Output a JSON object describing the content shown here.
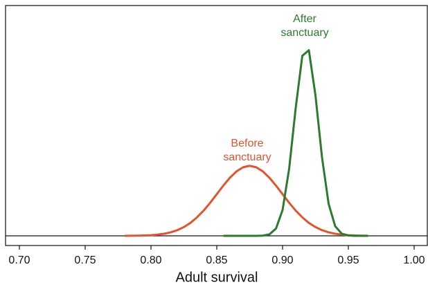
{
  "chart_data": {
    "type": "line",
    "xlabel": "Adult survival",
    "x": [
      0.78,
      0.785,
      0.79,
      0.795,
      0.8,
      0.805,
      0.81,
      0.815,
      0.82,
      0.825,
      0.83,
      0.835,
      0.84,
      0.845,
      0.85,
      0.855,
      0.86,
      0.865,
      0.87,
      0.875,
      0.88,
      0.885,
      0.89,
      0.895,
      0.9,
      0.905,
      0.91,
      0.915,
      0.92,
      0.925,
      0.93,
      0.935,
      0.94,
      0.945,
      0.95,
      0.955,
      0.96,
      0.965
    ],
    "series": [
      {
        "name": "Before sanctuary",
        "color": "#e5522b",
        "values": [
          0.01,
          0.02,
          0.04,
          0.08,
          0.15,
          0.28,
          0.48,
          0.81,
          1.31,
          2.04,
          3.01,
          4.31,
          5.87,
          7.7,
          9.69,
          11.69,
          13.52,
          15.0,
          15.96,
          16.3,
          15.96,
          15.0,
          13.52,
          11.69,
          9.69,
          7.7,
          5.87,
          4.31,
          3.01,
          2.04,
          1.31,
          0.81,
          0.48,
          0.28,
          0.15,
          0.08,
          0.04,
          0.02
        ]
      },
      {
        "name": "After sanctuary",
        "color": "#2b7a2e",
        "values": [
          null,
          null,
          null,
          null,
          null,
          null,
          null,
          null,
          null,
          null,
          null,
          null,
          null,
          null,
          null,
          0,
          0,
          0,
          0,
          0,
          0.01,
          0.05,
          0.35,
          1.69,
          6.0,
          15.6,
          29.8,
          41.9,
          43.2,
          32.7,
          18.2,
          7.46,
          2.23,
          0.49,
          0.08,
          0.01,
          0,
          0
        ]
      }
    ],
    "annotations": [
      [
        "Before",
        "sanctuary"
      ],
      [
        "After",
        "sanctuary"
      ]
    ],
    "xlim": [
      0.69,
      1.01
    ],
    "xticks": [
      {
        "value": 0.7,
        "label": "0.70"
      },
      0.75,
      {
        "value": 0.8,
        "label": "0.80"
      },
      0.85,
      {
        "value": 0.9,
        "label": "0.90"
      },
      0.95,
      {
        "value": 1.0,
        "label": "1.00"
      }
    ],
    "ylim": [
      0,
      53.6
    ]
  }
}
